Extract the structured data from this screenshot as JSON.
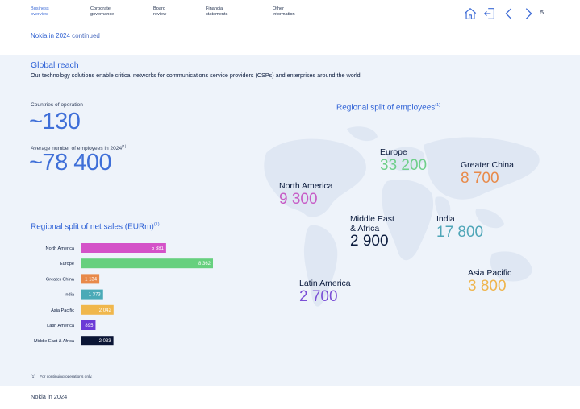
{
  "nav": {
    "items": [
      {
        "line1": "Business",
        "line2": "overview",
        "active": true
      },
      {
        "line1": "Corporate",
        "line2": "governance",
        "active": false
      },
      {
        "line1": "Board",
        "line2": "review",
        "active": false
      },
      {
        "line1": "Financial",
        "line2": "statements",
        "active": false
      },
      {
        "line1": "Other",
        "line2": "information",
        "active": false
      }
    ],
    "icons": [
      "home-icon",
      "exit-icon",
      "chevron-left-icon",
      "chevron-right-icon"
    ],
    "page_number": "5"
  },
  "subhead": {
    "main": "Nokia in 2024",
    "continued": "continued"
  },
  "section": {
    "title": "Global reach",
    "subtitle": "Our technology solutions enable critical networks for communications service providers (CSPs) and enterprises around the world."
  },
  "stats": {
    "countries_label": "Countries of operation",
    "countries_value": "~130",
    "employees_label": "Average number of employees in 2024",
    "employees_note": "(1)",
    "employees_value": "~78 400"
  },
  "sales_chart": {
    "title": "Regional split of net sales (EURm)",
    "note": "(1)"
  },
  "chart_data": {
    "type": "bar",
    "orientation": "horizontal",
    "title": "Regional split of net sales (EURm)",
    "categories": [
      "North America",
      "Europe",
      "Greater China",
      "India",
      "Asia Pacific",
      "Latin America",
      "Middle East & Africa"
    ],
    "values": [
      5381,
      8362,
      1134,
      1373,
      2042,
      895,
      2033
    ],
    "value_labels": [
      "5 381",
      "8 362",
      "1 134",
      "1 373",
      "2 042",
      "895",
      "2 033"
    ],
    "colors": [
      "#d452c8",
      "#66d07e",
      "#e8894a",
      "#4aaab7",
      "#f0b74c",
      "#6b3ad6",
      "#0b1535"
    ],
    "xlim": [
      0,
      8362
    ]
  },
  "employees_map": {
    "title": "Regional split of employees",
    "note": "(1)",
    "regions": [
      {
        "name": "North America",
        "value": "9 300",
        "color": "#c75bc6"
      },
      {
        "name": "Europe",
        "value": "33 200",
        "color": "#6fcf8a"
      },
      {
        "name": "Greater China",
        "value": "8 700",
        "color": "#e88a4a"
      },
      {
        "name": "Middle East\n& Africa",
        "value": "2 900",
        "color": "#0a1a3c"
      },
      {
        "name": "India",
        "value": "17 800",
        "color": "#4fa6b8"
      },
      {
        "name": "Latin America",
        "value": "2 700",
        "color": "#7b4fd6"
      },
      {
        "name": "Asia Pacific",
        "value": "3 800",
        "color": "#efb54d"
      }
    ]
  },
  "footnote": {
    "marker": "(1)",
    "text": "For continuing operations only."
  },
  "footer": {
    "text": "Nokia in 2024"
  }
}
